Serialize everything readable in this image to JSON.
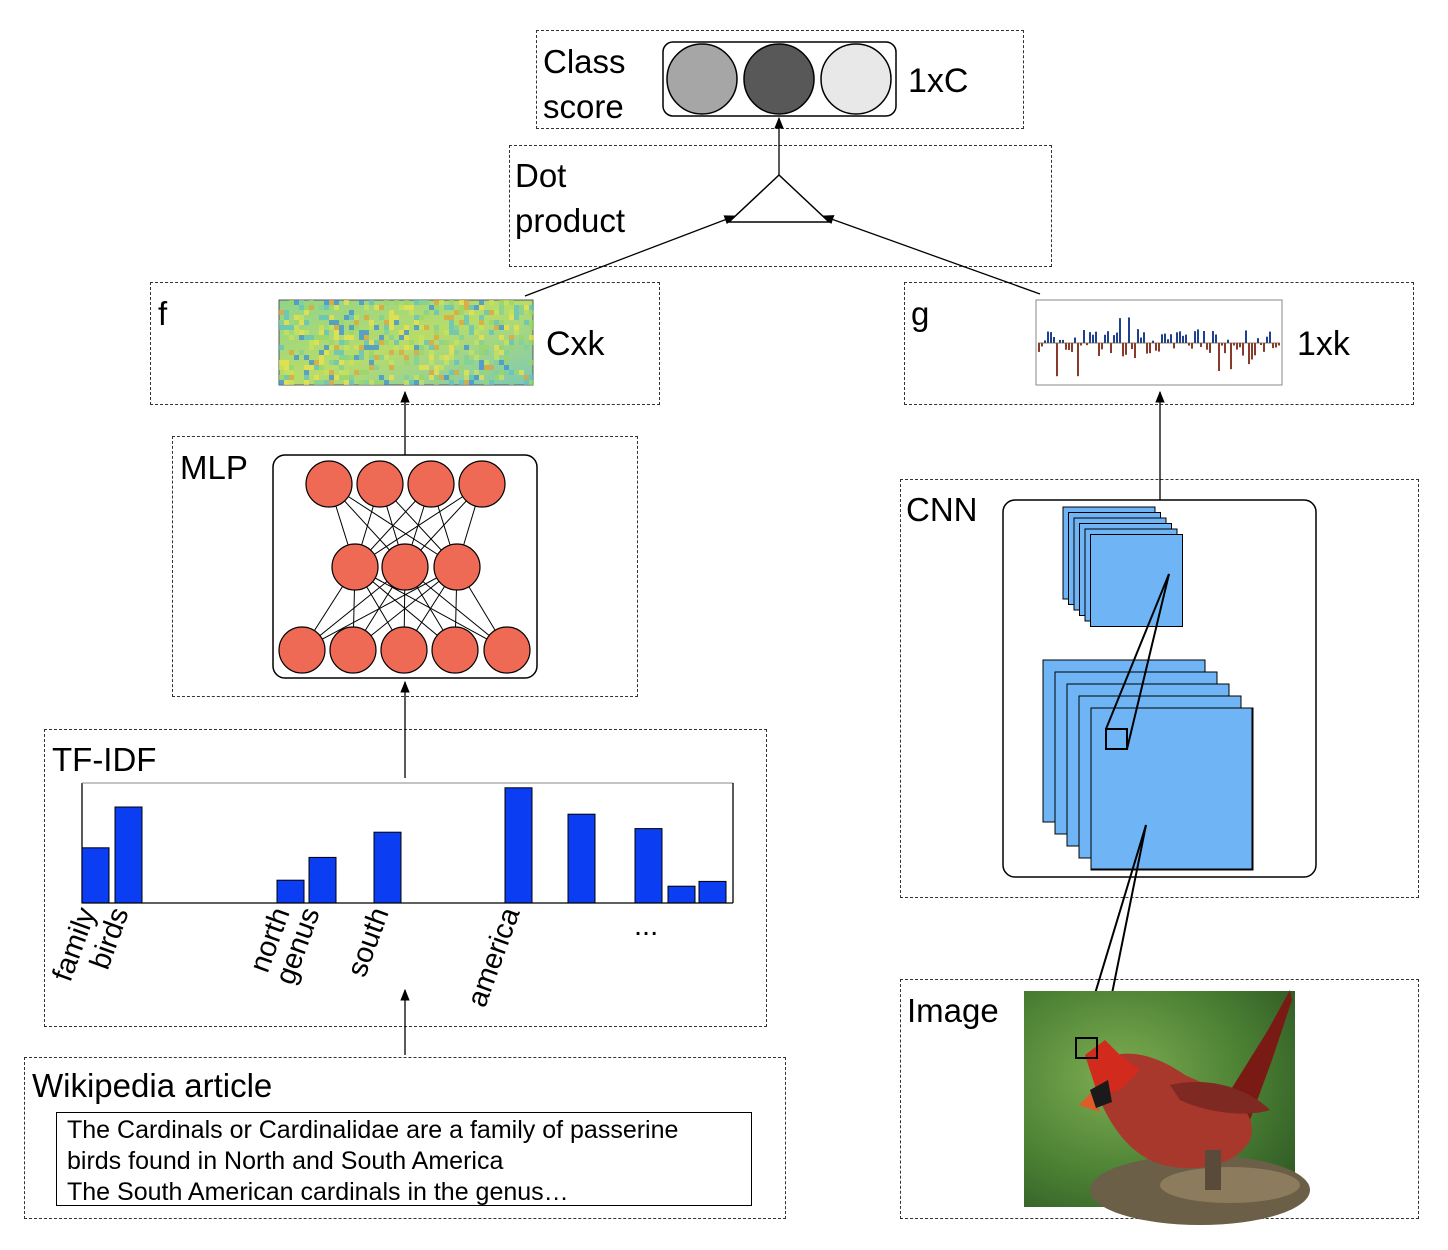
{
  "class_score": {
    "label": "Class\nscore",
    "dim": "1xC"
  },
  "dot_product": {
    "label": "Dot\nproduct"
  },
  "f": {
    "label": "f",
    "dim": "Cxk"
  },
  "g": {
    "label": "g",
    "dim": "1xk"
  },
  "mlp": {
    "label": "MLP"
  },
  "cnn": {
    "label": "CNN"
  },
  "tfidf": {
    "label": "TF-IDF",
    "words": [
      "family",
      "birds",
      "north",
      "genus",
      "south",
      "america"
    ],
    "ellipsis": "...",
    "values": [
      0.46,
      0.8,
      0.19,
      0.38,
      0.59,
      0.96,
      0.74,
      0.62,
      0.14,
      0.18
    ]
  },
  "image": {
    "label": "Image"
  },
  "wikipedia": {
    "label": "Wikipedia article",
    "lines": [
      "The Cardinals or Cardinalidae are a family of  passerine",
      "birds found in North and South America",
      "The South American cardinals in the genus…"
    ]
  },
  "colors": {
    "neuron": "#ee6a55",
    "bar": "#0b3df2",
    "cnn_fill": "#6fb4f4",
    "score_circles": [
      "#a6a6a6",
      "#585858",
      "#e8e8e8"
    ]
  }
}
